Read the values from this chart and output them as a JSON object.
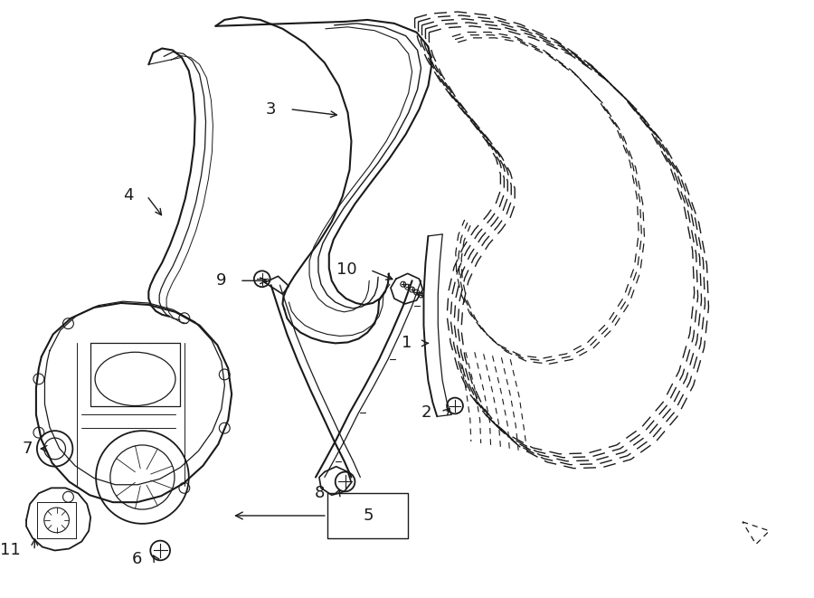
{
  "bg_color": "#ffffff",
  "line_color": "#1a1a1a",
  "figsize": [
    9.0,
    6.61
  ],
  "dpi": 100,
  "label_fontsize": 13
}
